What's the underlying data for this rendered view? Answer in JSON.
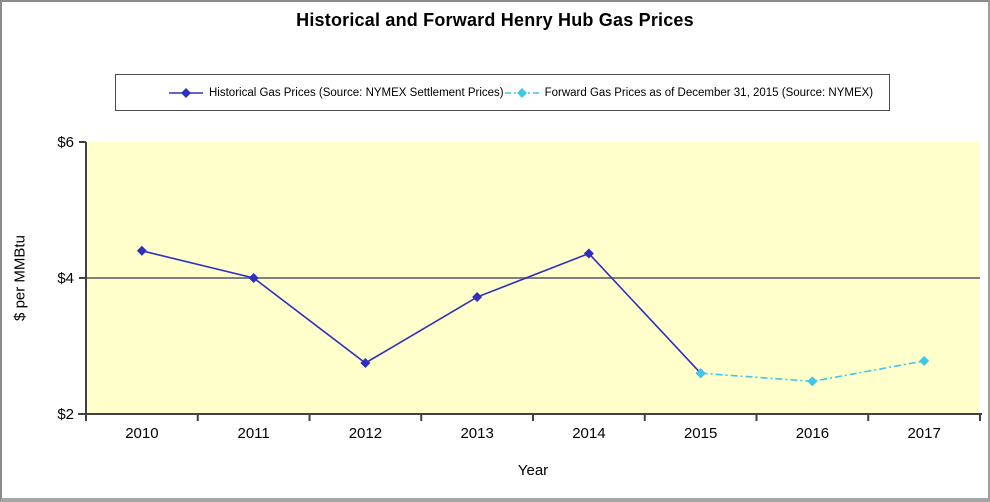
{
  "chart_data": {
    "type": "line",
    "title": "Historical and Forward Henry Hub Gas Prices",
    "xlabel": "Year",
    "ylabel": "$ per MMBtu",
    "categories": [
      "2010",
      "2011",
      "2012",
      "2013",
      "2014",
      "2015",
      "2016",
      "2017"
    ],
    "ylim": [
      2,
      6
    ],
    "yticks": [
      2,
      4,
      6
    ],
    "ytick_labels": [
      "$2",
      "$4",
      "$6"
    ],
    "reference_line_y": 4,
    "reference_line_color": "#808080",
    "plot_bg_color": "#ffffcc",
    "axis_color": "#404040",
    "grid": "off",
    "legend_position": "top",
    "series": [
      {
        "name": "Historical Gas Prices (Source: NYMEX Settlement Prices)",
        "color": "#2e2ec0",
        "line_style": "solid",
        "marker": "diamond",
        "x": [
          "2010",
          "2011",
          "2012",
          "2013",
          "2014",
          "2015"
        ],
        "values": [
          4.4,
          4.0,
          2.75,
          3.72,
          4.36,
          2.6
        ]
      },
      {
        "name": "Forward Gas Prices as of December 31, 2015 (Source: NYMEX)",
        "color": "#41c5e8",
        "line_style": "dash-dot",
        "marker": "diamond",
        "x": [
          "2015",
          "2016",
          "2017"
        ],
        "values": [
          2.6,
          2.48,
          2.78
        ]
      }
    ]
  }
}
